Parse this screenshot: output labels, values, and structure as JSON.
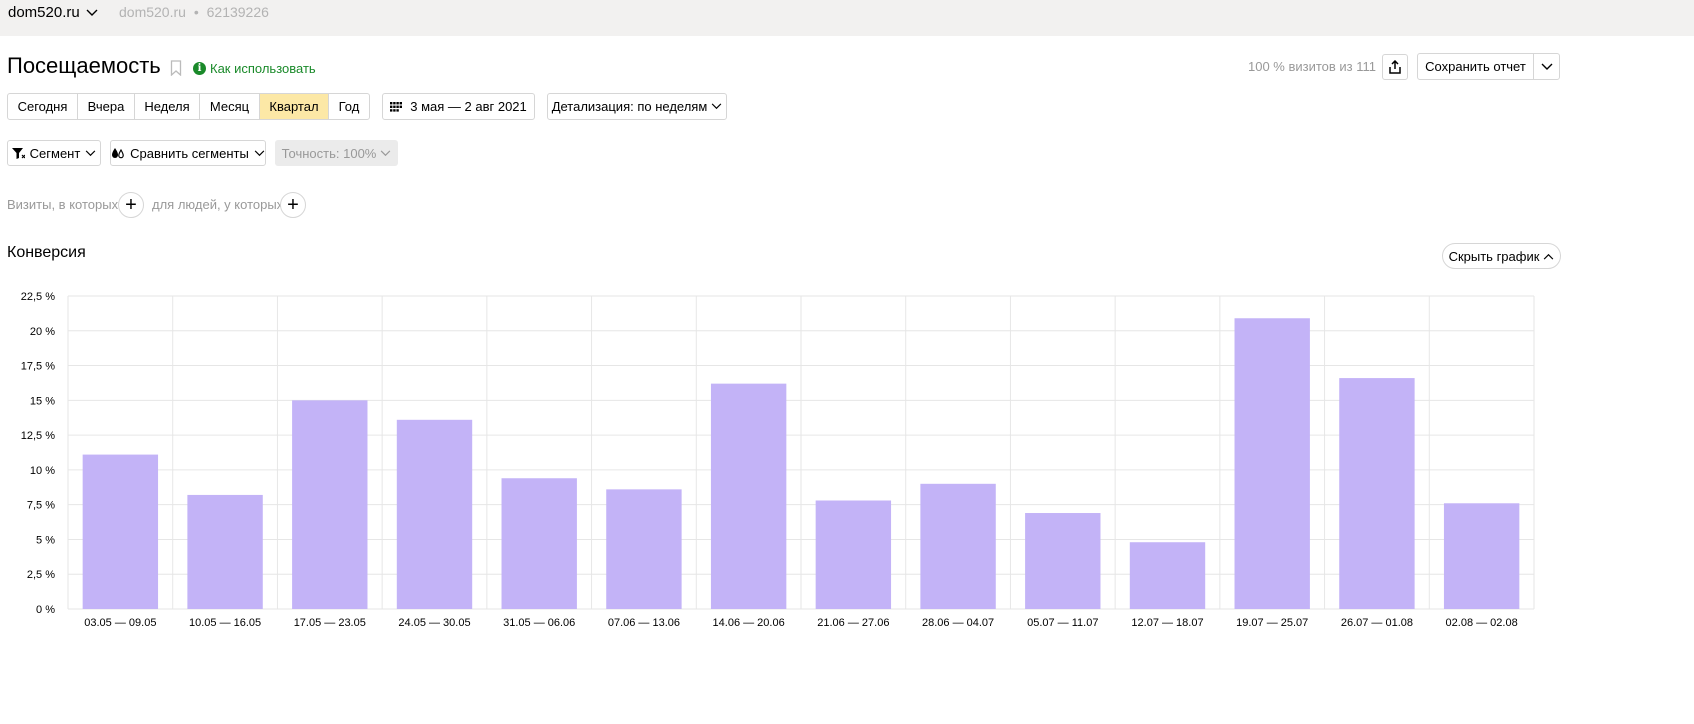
{
  "topbar": {
    "site": "dom520.ru",
    "counter_site": "dom520.ru",
    "separator": "•",
    "counter_id": "62139226"
  },
  "header": {
    "title": "Посещаемость",
    "howto_label": "Как использовать",
    "visits_share": "100 % визитов из 111",
    "save_label": "Сохранить отчет"
  },
  "periods": [
    {
      "label": "Сегодня",
      "active": false
    },
    {
      "label": "Вчера",
      "active": false
    },
    {
      "label": "Неделя",
      "active": false
    },
    {
      "label": "Месяц",
      "active": false
    },
    {
      "label": "Квартал",
      "active": true
    },
    {
      "label": "Год",
      "active": false
    }
  ],
  "date_range": "3 мая — 2 авг 2021",
  "detail_label": "Детализация: по неделям",
  "filters": {
    "segment_label": "Сегмент",
    "compare_label": "Сравнить сегменты",
    "precision_label": "Точность: 100%"
  },
  "conditions": {
    "visits_label": "Визиты, в которых",
    "people_label": "для людей, у которых"
  },
  "section": {
    "title": "Конверсия",
    "hide_chart_label": "Скрыть график"
  },
  "colors": {
    "bar": "#c3b3f7",
    "active_period": "#fce8a6",
    "howto": "#1a8a2a",
    "grid": "#e6e6e6"
  },
  "chart_data": {
    "type": "bar",
    "categories": [
      "03.05 — 09.05",
      "10.05 — 16.05",
      "17.05 — 23.05",
      "24.05 — 30.05",
      "31.05 — 06.06",
      "07.06 — 13.06",
      "14.06 — 20.06",
      "21.06 — 27.06",
      "28.06 — 04.07",
      "05.07 — 11.07",
      "12.07 — 18.07",
      "19.07 — 25.07",
      "26.07 — 01.08",
      "02.08 — 02.08"
    ],
    "values": [
      11.1,
      8.2,
      15.0,
      13.6,
      9.4,
      8.6,
      16.2,
      7.8,
      9.0,
      6.9,
      4.8,
      20.9,
      16.6,
      7.6
    ],
    "ylim": [
      0,
      22.5
    ],
    "yticks": [
      0,
      2.5,
      5,
      7.5,
      10,
      12.5,
      15,
      17.5,
      20,
      22.5
    ],
    "ytick_labels": [
      "0 %",
      "2,5 %",
      "5 %",
      "7,5 %",
      "10 %",
      "12,5 %",
      "15 %",
      "17,5 %",
      "20 %",
      "22,5 %"
    ],
    "grid": true
  }
}
